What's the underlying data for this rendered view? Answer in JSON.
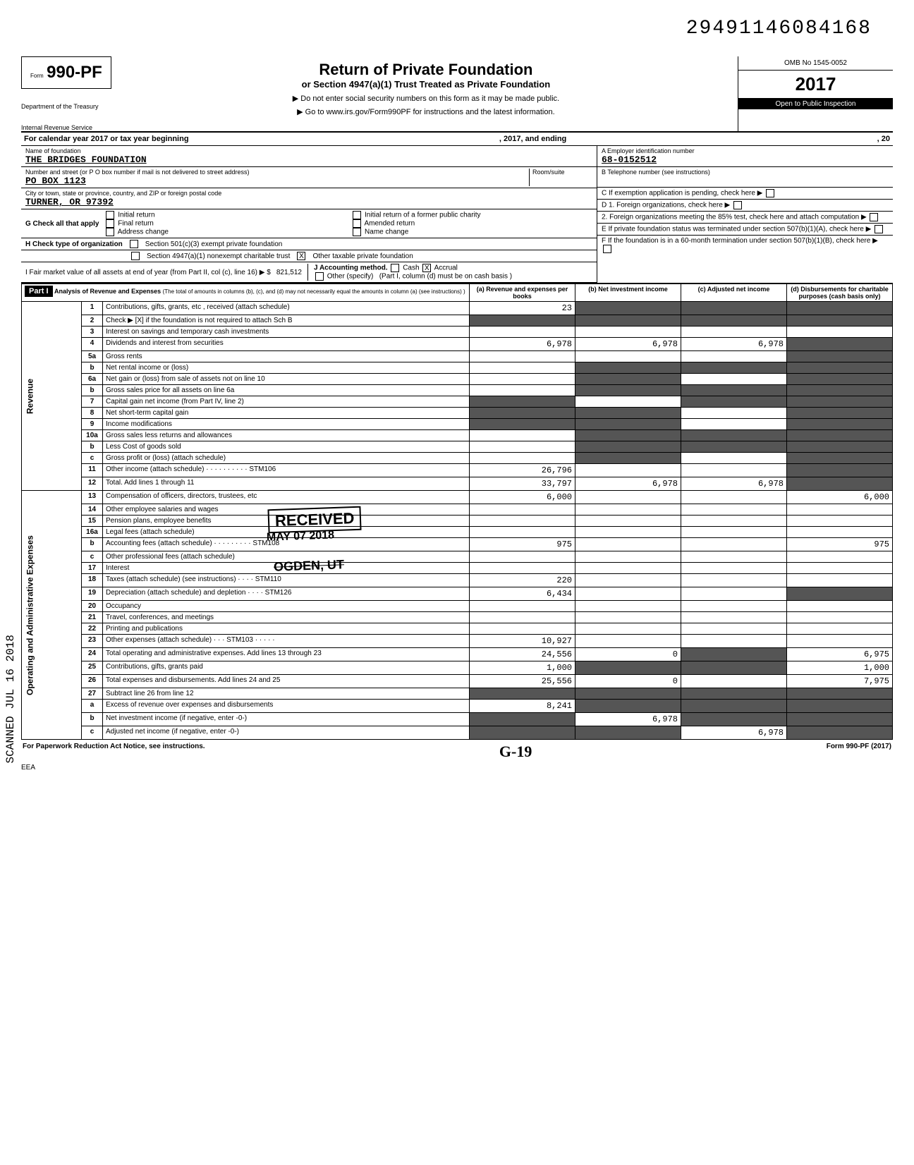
{
  "document_number": "29491146084168",
  "form": {
    "number": "990-PF",
    "prefix": "Form",
    "dept_line1": "Department of the Treasury",
    "dept_line2": "Internal Revenue Service"
  },
  "header": {
    "title": "Return of Private Foundation",
    "subtitle": "or Section 4947(a)(1) Trust Treated as Private Foundation",
    "note1": "▶ Do not enter social security numbers on this form as it may be made public.",
    "note2": "▶ Go to www.irs.gov/Form990PF for instructions and the latest information.",
    "omb": "OMB No 1545-0052",
    "year": "2017",
    "inspection": "Open to Public Inspection"
  },
  "cal_year": {
    "prefix": "For calendar year 2017 or tax year beginning",
    "mid": ", 2017, and ending",
    "suffix": ", 20"
  },
  "entity": {
    "name_label": "Name of foundation",
    "name": "THE BRIDGES FOUNDATION",
    "street_label": "Number and street (or P O box number if mail is not delivered to street address)",
    "street": "PO BOX 1123",
    "room_label": "Room/suite",
    "city_label": "City or town, state or province, country, and ZIP or foreign postal code",
    "city": "TURNER, OR 97392",
    "ein_label": "A Employer identification number",
    "ein": "68-0152512",
    "phone_label": "B Telephone number (see instructions)",
    "c_label": "C  If exemption application is pending, check here",
    "d1_label": "D  1. Foreign organizations, check here",
    "d2_label": "2. Foreign organizations meeting the 85% test, check here and attach computation",
    "e_label": "E  If private foundation status was terminated under section 507(b)(1)(A), check here",
    "f_label": "F  If the foundation is in a 60-month termination under section 507(b)(1)(B), check here"
  },
  "g": {
    "label": "G  Check all that apply",
    "opts": [
      "Initial return",
      "Final return",
      "Address change",
      "Initial return of a former public charity",
      "Amended return",
      "Name change"
    ]
  },
  "h": {
    "label": "H  Check type of organization",
    "opt1": "Section 501(c)(3) exempt private foundation",
    "opt2": "Section 4947(a)(1) nonexempt charitable trust",
    "opt3": "Other taxable private foundation",
    "opt3_checked": "X"
  },
  "i": {
    "label": "I  Fair market value of all assets at end of year (from Part II, col (c), line 16) ▶ $",
    "value": "821,512",
    "j_label": "J  Accounting method.",
    "cash": "Cash",
    "accrual": "Accrual",
    "accrual_checked": "X",
    "other": "Other (specify)",
    "note": "(Part I, column (d) must be on cash basis )"
  },
  "part1": {
    "badge": "Part I",
    "title": "Analysis of Revenue and Expenses",
    "title_note": "(The total of amounts in columns (b), (c), and (d) may not necessarily equal the amounts in column (a) (see instructions) )",
    "col_a": "(a) Revenue and expenses per books",
    "col_b": "(b) Net investment income",
    "col_c": "(c) Adjusted net income",
    "col_d": "(d) Disbursements for charitable purposes (cash basis only)",
    "side_revenue": "Revenue",
    "side_expenses": "Operating and Administrative Expenses"
  },
  "rows": [
    {
      "n": "1",
      "desc": "Contributions, gifts, grants, etc , received (attach schedule)",
      "a": "23",
      "b": "",
      "c": "",
      "d": "",
      "shade_b": true,
      "shade_c": true,
      "shade_d": true
    },
    {
      "n": "2",
      "desc": "Check ▶ [X] if the foundation is not required to attach Sch B",
      "a": "",
      "b": "",
      "c": "",
      "d": "",
      "shade_a": true,
      "shade_b": true,
      "shade_c": true,
      "shade_d": true
    },
    {
      "n": "3",
      "desc": "Interest on savings and temporary cash investments",
      "a": "",
      "b": "",
      "c": "",
      "d": ""
    },
    {
      "n": "4",
      "desc": "Dividends and interest from securities",
      "a": "6,978",
      "b": "6,978",
      "c": "6,978",
      "d": "",
      "shade_d": true
    },
    {
      "n": "5a",
      "desc": "Gross rents",
      "a": "",
      "b": "",
      "c": "",
      "d": "",
      "shade_d": true
    },
    {
      "n": "b",
      "desc": "Net rental income or (loss)",
      "a": "",
      "b": "",
      "c": "",
      "d": "",
      "shade_b": true,
      "shade_c": true,
      "shade_d": true
    },
    {
      "n": "6a",
      "desc": "Net gain or (loss) from sale of assets not on line 10",
      "a": "",
      "b": "",
      "c": "",
      "d": "",
      "shade_b": true,
      "shade_d": true
    },
    {
      "n": "b",
      "desc": "Gross sales price for all assets on line 6a",
      "a": "",
      "b": "",
      "c": "",
      "d": "",
      "shade_b": true,
      "shade_c": true,
      "shade_d": true
    },
    {
      "n": "7",
      "desc": "Capital gain net income (from Part IV, line 2)",
      "a": "",
      "b": "",
      "c": "",
      "d": "",
      "shade_a": true,
      "shade_c": true,
      "shade_d": true
    },
    {
      "n": "8",
      "desc": "Net short-term capital gain",
      "a": "",
      "b": "",
      "c": "",
      "d": "",
      "shade_a": true,
      "shade_b": true,
      "shade_d": true
    },
    {
      "n": "9",
      "desc": "Income modifications",
      "a": "",
      "b": "",
      "c": "",
      "d": "",
      "shade_a": true,
      "shade_b": true,
      "shade_d": true
    },
    {
      "n": "10a",
      "desc": "Gross sales less returns and allowances",
      "a": "",
      "b": "",
      "c": "",
      "d": "",
      "shade_b": true,
      "shade_c": true,
      "shade_d": true
    },
    {
      "n": "b",
      "desc": "Less Cost of goods sold",
      "a": "",
      "b": "",
      "c": "",
      "d": "",
      "shade_b": true,
      "shade_c": true,
      "shade_d": true
    },
    {
      "n": "c",
      "desc": "Gross profit or (loss) (attach schedule)",
      "a": "",
      "b": "",
      "c": "",
      "d": "",
      "shade_b": true,
      "shade_d": true
    },
    {
      "n": "11",
      "desc": "Other income (attach schedule) · · · · · · · · · · STM106",
      "a": "26,796",
      "b": "",
      "c": "",
      "d": "",
      "shade_d": true
    },
    {
      "n": "12",
      "desc": "Total. Add lines 1 through 11",
      "a": "33,797",
      "b": "6,978",
      "c": "6,978",
      "d": "",
      "shade_d": true
    },
    {
      "n": "13",
      "desc": "Compensation of officers, directors, trustees, etc",
      "a": "6,000",
      "b": "",
      "c": "",
      "d": "6,000"
    },
    {
      "n": "14",
      "desc": "Other employee salaries and wages",
      "a": "",
      "b": "",
      "c": "",
      "d": ""
    },
    {
      "n": "15",
      "desc": "Pension plans, employee benefits",
      "a": "",
      "b": "",
      "c": "",
      "d": ""
    },
    {
      "n": "16a",
      "desc": "Legal fees (attach schedule)",
      "a": "",
      "b": "",
      "c": "",
      "d": ""
    },
    {
      "n": "b",
      "desc": "Accounting fees (attach schedule) · · · · · · · · · STM108",
      "a": "975",
      "b": "",
      "c": "",
      "d": "975"
    },
    {
      "n": "c",
      "desc": "Other professional fees (attach schedule)",
      "a": "",
      "b": "",
      "c": "",
      "d": ""
    },
    {
      "n": "17",
      "desc": "Interest",
      "a": "",
      "b": "",
      "c": "",
      "d": ""
    },
    {
      "n": "18",
      "desc": "Taxes (attach schedule) (see instructions) · · · · STM110",
      "a": "220",
      "b": "",
      "c": "",
      "d": ""
    },
    {
      "n": "19",
      "desc": "Depreciation (attach schedule) and depletion · · · · STM126",
      "a": "6,434",
      "b": "",
      "c": "",
      "d": "",
      "shade_d": true
    },
    {
      "n": "20",
      "desc": "Occupancy",
      "a": "",
      "b": "",
      "c": "",
      "d": ""
    },
    {
      "n": "21",
      "desc": "Travel, conferences, and meetings",
      "a": "",
      "b": "",
      "c": "",
      "d": ""
    },
    {
      "n": "22",
      "desc": "Printing and publications",
      "a": "",
      "b": "",
      "c": "",
      "d": ""
    },
    {
      "n": "23",
      "desc": "Other expenses (attach schedule) · · · STM103 · · · · ·",
      "a": "10,927",
      "b": "",
      "c": "",
      "d": ""
    },
    {
      "n": "24",
      "desc": "Total operating and administrative expenses. Add lines 13 through 23",
      "a": "24,556",
      "b": "0",
      "c": "",
      "d": "6,975",
      "shade_c": true
    },
    {
      "n": "25",
      "desc": "Contributions, gifts, grants paid",
      "a": "1,000",
      "b": "",
      "c": "",
      "d": "1,000",
      "shade_b": true,
      "shade_c": true
    },
    {
      "n": "26",
      "desc": "Total expenses and disbursements. Add lines 24 and 25",
      "a": "25,556",
      "b": "0",
      "c": "",
      "d": "7,975"
    },
    {
      "n": "27",
      "desc": "Subtract line 26 from line 12",
      "a": "",
      "b": "",
      "c": "",
      "d": "",
      "shade_a": true,
      "shade_b": true,
      "shade_c": true,
      "shade_d": true
    },
    {
      "n": "a",
      "desc": "Excess of revenue over expenses and disbursements",
      "a": "8,241",
      "b": "",
      "c": "",
      "d": "",
      "shade_b": true,
      "shade_c": true,
      "shade_d": true
    },
    {
      "n": "b",
      "desc": "Net investment income (if negative, enter -0-)",
      "a": "",
      "b": "6,978",
      "c": "",
      "d": "",
      "shade_a": true,
      "shade_c": true,
      "shade_d": true
    },
    {
      "n": "c",
      "desc": "Adjusted net income (if negative, enter -0-)",
      "a": "",
      "b": "",
      "c": "6,978",
      "d": "",
      "shade_a": true,
      "shade_b": true,
      "shade_d": true
    }
  ],
  "stamps": {
    "received": "RECEIVED",
    "date": "MAY 07 2018",
    "ogden": "OGDEN, UT"
  },
  "footer": {
    "paperwork": "For Paperwork Reduction Act Notice, see instructions.",
    "eea": "EEA",
    "form_ref": "Form 990-PF (2017)",
    "handwrite": "G-19"
  },
  "scanned": "SCANNED JUL 16 2018",
  "colors": {
    "text": "#000000",
    "bg": "#ffffff",
    "shade": "#555555",
    "header_bg": "#000000"
  }
}
